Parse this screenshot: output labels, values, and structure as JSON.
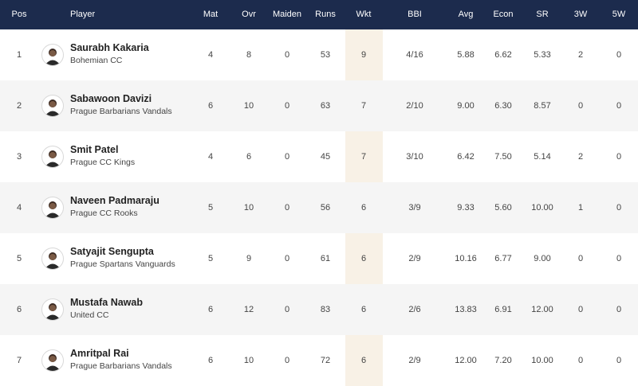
{
  "headers": {
    "pos": "Pos",
    "player": "Player",
    "mat": "Mat",
    "ovr": "Ovr",
    "maiden": "Maiden",
    "runs": "Runs",
    "wkt": "Wkt",
    "bbi": "BBI",
    "avg": "Avg",
    "econ": "Econ",
    "sr": "SR",
    "w3": "3W",
    "w5": "5W"
  },
  "colors": {
    "header_bg": "#1c2b4d",
    "wkt_highlight": "#f8f1e6",
    "alt_row": "#f5f5f5"
  },
  "icons": {
    "avatar": "player-avatar-icon"
  },
  "rows": [
    {
      "pos": "1",
      "name": "Saurabh Kakaria",
      "team": "Bohemian CC",
      "mat": "4",
      "ovr": "8",
      "maiden": "0",
      "runs": "53",
      "wkt": "9",
      "bbi": "4/16",
      "avg": "5.88",
      "econ": "6.62",
      "sr": "5.33",
      "w3": "2",
      "w5": "0"
    },
    {
      "pos": "2",
      "name": "Sabawoon Davizi",
      "team": "Prague Barbarians Vandals",
      "mat": "6",
      "ovr": "10",
      "maiden": "0",
      "runs": "63",
      "wkt": "7",
      "bbi": "2/10",
      "avg": "9.00",
      "econ": "6.30",
      "sr": "8.57",
      "w3": "0",
      "w5": "0"
    },
    {
      "pos": "3",
      "name": "Smit Patel",
      "team": "Prague CC Kings",
      "mat": "4",
      "ovr": "6",
      "maiden": "0",
      "runs": "45",
      "wkt": "7",
      "bbi": "3/10",
      "avg": "6.42",
      "econ": "7.50",
      "sr": "5.14",
      "w3": "2",
      "w5": "0"
    },
    {
      "pos": "4",
      "name": "Naveen Padmaraju",
      "team": "Prague CC Rooks",
      "mat": "5",
      "ovr": "10",
      "maiden": "0",
      "runs": "56",
      "wkt": "6",
      "bbi": "3/9",
      "avg": "9.33",
      "econ": "5.60",
      "sr": "10.00",
      "w3": "1",
      "w5": "0"
    },
    {
      "pos": "5",
      "name": "Satyajit Sengupta",
      "team": "Prague Spartans Vanguards",
      "mat": "5",
      "ovr": "9",
      "maiden": "0",
      "runs": "61",
      "wkt": "6",
      "bbi": "2/9",
      "avg": "10.16",
      "econ": "6.77",
      "sr": "9.00",
      "w3": "0",
      "w5": "0"
    },
    {
      "pos": "6",
      "name": "Mustafa Nawab",
      "team": "United CC",
      "mat": "6",
      "ovr": "12",
      "maiden": "0",
      "runs": "83",
      "wkt": "6",
      "bbi": "2/6",
      "avg": "13.83",
      "econ": "6.91",
      "sr": "12.00",
      "w3": "0",
      "w5": "0"
    },
    {
      "pos": "7",
      "name": "Amritpal Rai",
      "team": "Prague Barbarians Vandals",
      "mat": "6",
      "ovr": "10",
      "maiden": "0",
      "runs": "72",
      "wkt": "6",
      "bbi": "2/9",
      "avg": "12.00",
      "econ": "7.20",
      "sr": "10.00",
      "w3": "0",
      "w5": "0"
    }
  ]
}
